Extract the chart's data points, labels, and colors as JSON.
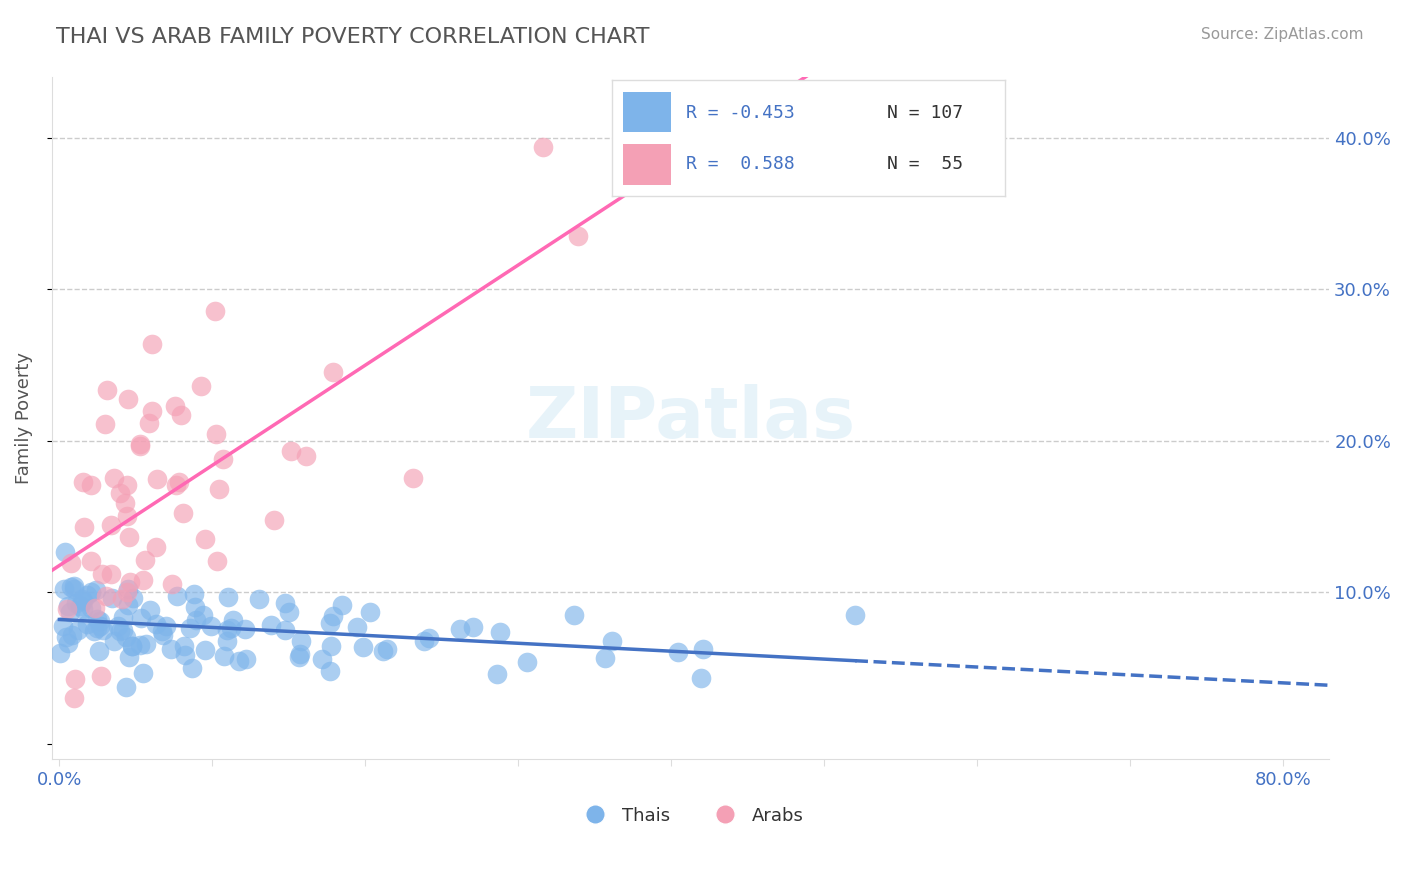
{
  "title": "THAI VS ARAB FAMILY POVERTY CORRELATION CHART",
  "source": "Source: ZipAtlas.com",
  "ylabel": "Family Poverty",
  "thai_color": "#7EB4EA",
  "arab_color": "#F4A0B5",
  "thai_line_color": "#4472C4",
  "arab_line_color": "#FF69B4",
  "legend_R_thai": "-0.453",
  "legend_N_thai": "107",
  "legend_R_arab": "0.588",
  "legend_N_arab": "55",
  "legend_label_thai": "Thais",
  "legend_label_arab": "Arabs",
  "watermark": "ZIPatlas",
  "background_color": "#FFFFFF",
  "grid_color": "#CCCCCC",
  "title_color": "#555555",
  "axis_label_color": "#555555",
  "tick_label_color": "#4472C4",
  "thai_seed": 42,
  "arab_seed": 123,
  "n_thai": 107,
  "n_arab": 55,
  "xlim": [
    -0.005,
    0.83
  ],
  "ylim": [
    -0.01,
    0.44
  ]
}
